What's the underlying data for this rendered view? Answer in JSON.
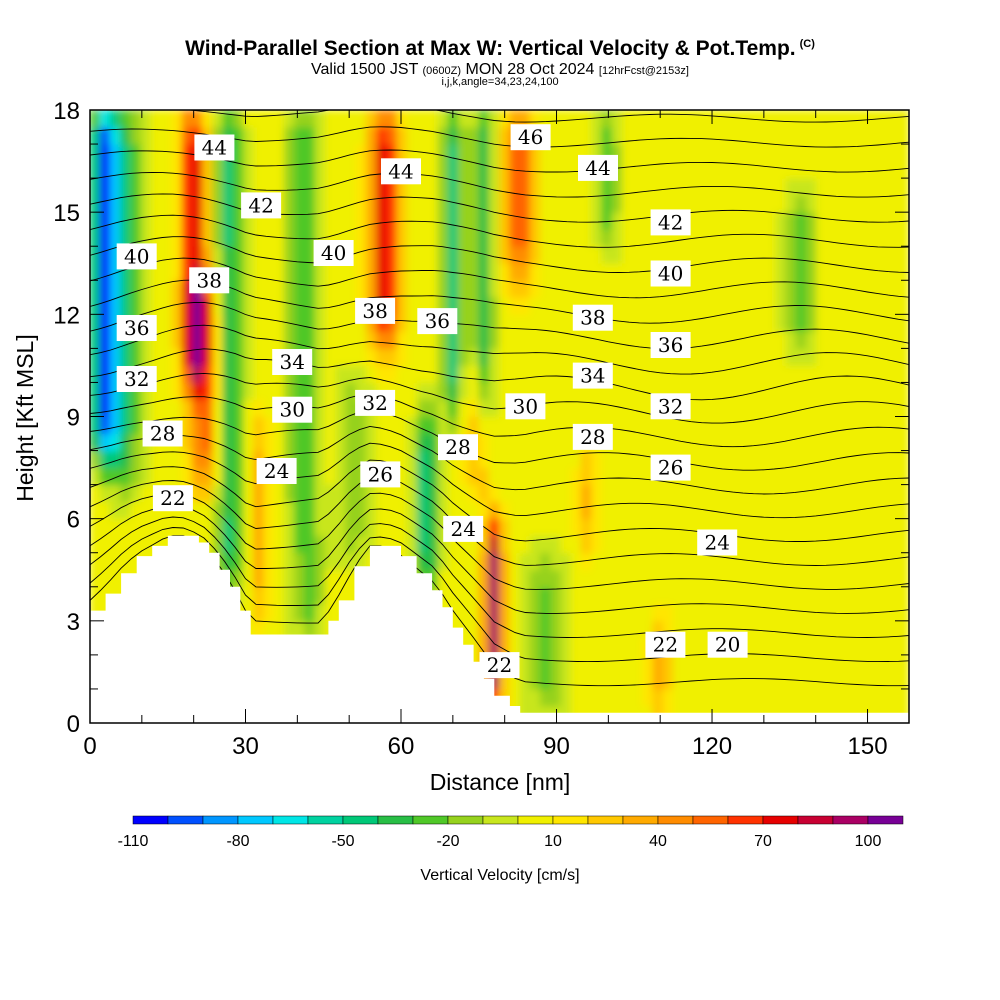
{
  "header": {
    "title": "Wind-Parallel Section at Max W: Vertical Velocity & Pot.Temp.",
    "copyright": "(C)",
    "valid_prefix": "Valid 1500 JST",
    "valid_utc": "(0600Z)",
    "valid_date": "MON 28 Oct 2024",
    "forecast": "[12hrFcst@2153z]",
    "params": "i,j,k,angle=34,23,24,100"
  },
  "chart_data": {
    "type": "heatmap",
    "xlabel": "Distance [nm]",
    "ylabel": "Height [Kft MSL]",
    "xlim": [
      0,
      158
    ],
    "ylim": [
      0,
      18
    ],
    "x_ticks": [
      0,
      30,
      60,
      90,
      120,
      150
    ],
    "y_ticks": [
      0,
      3,
      6,
      9,
      12,
      15,
      18
    ],
    "colorbar": {
      "label": "Vertical Velocity [cm/s]",
      "tick_values": [
        -110,
        -80,
        -50,
        -20,
        10,
        40,
        70,
        100
      ],
      "tick_labels": [
        "-110",
        "-80",
        "-50",
        "-20",
        "10",
        "40",
        "70",
        "100"
      ],
      "levels": [
        -110,
        -100,
        -90,
        -80,
        -70,
        -60,
        -50,
        -40,
        -30,
        -20,
        -10,
        0,
        10,
        20,
        30,
        40,
        50,
        60,
        70,
        80,
        90,
        100
      ],
      "colors": [
        "#0000ff",
        "#0050ff",
        "#0096ff",
        "#00c8ff",
        "#00e6e6",
        "#00d2a0",
        "#00c878",
        "#28be46",
        "#50c828",
        "#96d21e",
        "#c8e61e",
        "#f0f000",
        "#ffe600",
        "#ffc800",
        "#ffaa00",
        "#ff8c00",
        "#ff6400",
        "#ff3200",
        "#e60000",
        "#c80032",
        "#aa0064",
        "#780096"
      ]
    },
    "terrain_top_kft": [
      [
        0,
        3.3
      ],
      [
        3,
        3.8
      ],
      [
        6,
        4.4
      ],
      [
        9,
        4.9
      ],
      [
        12,
        5.2
      ],
      [
        15,
        5.5
      ],
      [
        18,
        5.5
      ],
      [
        21,
        5.3
      ],
      [
        23,
        5.0
      ],
      [
        25,
        4.5
      ],
      [
        27,
        4.0
      ],
      [
        29,
        3.3
      ],
      [
        31,
        2.6
      ],
      [
        35,
        2.6
      ],
      [
        40,
        2.6
      ],
      [
        45,
        2.6
      ],
      [
        46,
        3.0
      ],
      [
        48,
        3.6
      ],
      [
        51,
        4.6
      ],
      [
        54,
        5.2
      ],
      [
        57,
        5.2
      ],
      [
        60,
        4.9
      ],
      [
        63,
        4.4
      ],
      [
        66,
        3.9
      ],
      [
        68,
        3.4
      ],
      [
        70,
        2.8
      ],
      [
        72,
        2.3
      ],
      [
        74,
        1.8
      ],
      [
        76,
        1.3
      ],
      [
        78,
        0.8
      ],
      [
        81,
        0.5
      ],
      [
        83,
        0.3
      ],
      [
        158,
        0.3
      ]
    ],
    "theta_contour_labels": [
      {
        "text": "44",
        "x": 24,
        "y": 16.9
      },
      {
        "text": "42",
        "x": 33,
        "y": 15.2
      },
      {
        "text": "40",
        "x": 9,
        "y": 13.7
      },
      {
        "text": "38",
        "x": 23,
        "y": 13.0
      },
      {
        "text": "36",
        "x": 9,
        "y": 11.6
      },
      {
        "text": "32",
        "x": 9,
        "y": 10.1
      },
      {
        "text": "28",
        "x": 14,
        "y": 8.5
      },
      {
        "text": "22",
        "x": 16,
        "y": 6.6
      },
      {
        "text": "44",
        "x": 60,
        "y": 16.2
      },
      {
        "text": "40",
        "x": 47,
        "y": 13.8
      },
      {
        "text": "38",
        "x": 55,
        "y": 12.1
      },
      {
        "text": "36",
        "x": 67,
        "y": 11.8
      },
      {
        "text": "34",
        "x": 39,
        "y": 10.6
      },
      {
        "text": "30",
        "x": 39,
        "y": 9.2
      },
      {
        "text": "32",
        "x": 55,
        "y": 9.4
      },
      {
        "text": "24",
        "x": 36,
        "y": 7.4
      },
      {
        "text": "26",
        "x": 56,
        "y": 7.3
      },
      {
        "text": "28",
        "x": 71,
        "y": 8.1
      },
      {
        "text": "24",
        "x": 72,
        "y": 5.7
      },
      {
        "text": "22",
        "x": 79,
        "y": 1.7
      },
      {
        "text": "46",
        "x": 85,
        "y": 17.2
      },
      {
        "text": "44",
        "x": 98,
        "y": 16.3
      },
      {
        "text": "30",
        "x": 84,
        "y": 9.3
      },
      {
        "text": "42",
        "x": 112,
        "y": 14.7
      },
      {
        "text": "40",
        "x": 112,
        "y": 13.2
      },
      {
        "text": "38",
        "x": 97,
        "y": 11.9
      },
      {
        "text": "36",
        "x": 112,
        "y": 11.1
      },
      {
        "text": "34",
        "x": 97,
        "y": 10.2
      },
      {
        "text": "32",
        "x": 112,
        "y": 9.3
      },
      {
        "text": "28",
        "x": 97,
        "y": 8.4
      },
      {
        "text": "26",
        "x": 112,
        "y": 7.5
      },
      {
        "text": "24",
        "x": 121,
        "y": 5.3
      },
      {
        "text": "22",
        "x": 111,
        "y": 2.3
      },
      {
        "text": "20",
        "x": 123,
        "y": 2.3
      }
    ]
  }
}
